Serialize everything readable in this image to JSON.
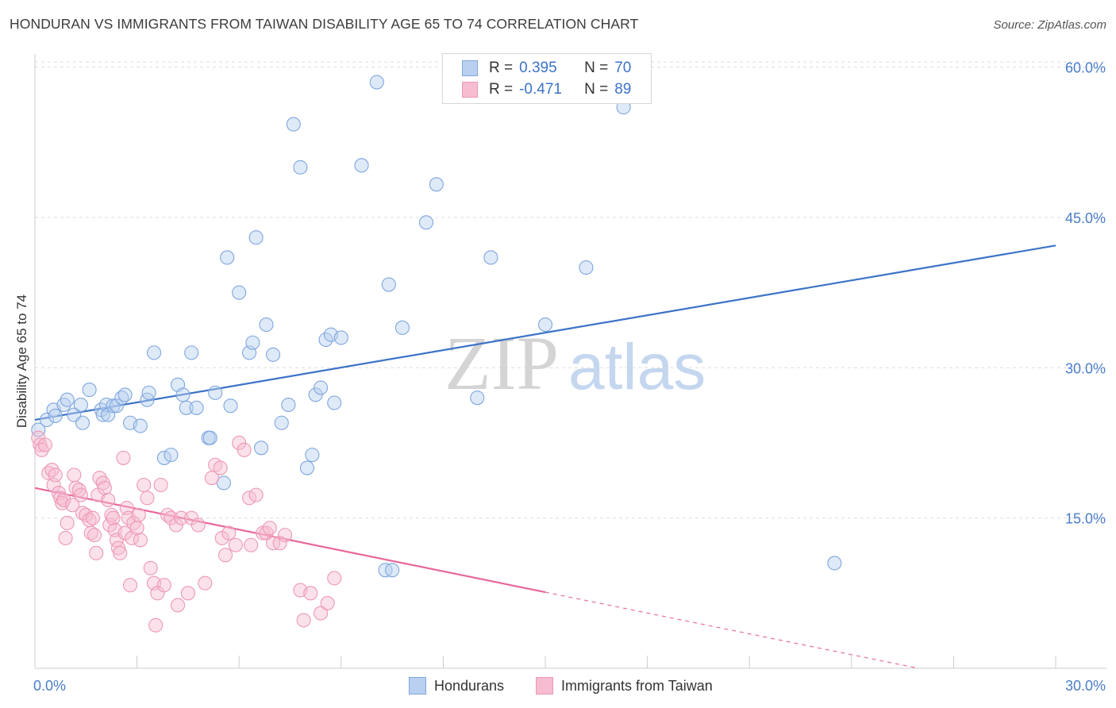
{
  "title": "HONDURAN VS IMMIGRANTS FROM TAIWAN DISABILITY AGE 65 TO 74 CORRELATION CHART",
  "source": "Source: ZipAtlas.com",
  "watermark": {
    "zip": "ZIP",
    "atlas": "atlas"
  },
  "colors": {
    "blue": "#3b73c8",
    "blue_fill": "#b9d0f0",
    "pink": "#e8679a",
    "pink_fill": "#f6bcd0",
    "grid": "#dddddd"
  },
  "legend": {
    "rows": [
      {
        "r_label": "R =",
        "r_value": "0.395",
        "n_label": "N =",
        "n_value": "70"
      },
      {
        "r_label": "R =",
        "r_value": "-0.471",
        "n_label": "N =",
        "n_value": "89"
      }
    ]
  },
  "bottom_legend": {
    "s1": "Hondurans",
    "s2": "Immigrants from Taiwan"
  },
  "chart_data": {
    "type": "scatter",
    "title": "HONDURAN VS IMMIGRANTS FROM TAIWAN DISABILITY AGE 65 TO 74 CORRELATION CHART",
    "xlabel": "",
    "ylabel": "Disability Age 65 to 74",
    "xlim": [
      0,
      30
    ],
    "ylim": [
      0,
      61
    ],
    "y_ticks": [
      15,
      30,
      45,
      60
    ],
    "y_tick_labels": [
      "15.0%",
      "30.0%",
      "45.0%",
      "60.0%"
    ],
    "x_tick_labels": [
      "0.0%",
      "30.0%"
    ],
    "grid": true,
    "legend_position": "top-center",
    "series": [
      {
        "name": "Hondurans",
        "color": "#3b73c8",
        "trend": {
          "x": [
            0.0,
            30.0
          ],
          "y": [
            24.8,
            42.2
          ],
          "style": "solid"
        },
        "points": [
          [
            0.1,
            23.8
          ],
          [
            0.35,
            24.8
          ],
          [
            0.55,
            25.8
          ],
          [
            0.6,
            25.2
          ],
          [
            0.85,
            26.3
          ],
          [
            0.95,
            26.8
          ],
          [
            1.15,
            25.3
          ],
          [
            1.35,
            26.3
          ],
          [
            1.4,
            24.5
          ],
          [
            1.6,
            27.8
          ],
          [
            1.95,
            25.8
          ],
          [
            2.0,
            25.3
          ],
          [
            2.1,
            26.3
          ],
          [
            2.15,
            25.3
          ],
          [
            2.3,
            26.2
          ],
          [
            2.4,
            26.2
          ],
          [
            2.55,
            27.0
          ],
          [
            2.65,
            27.3
          ],
          [
            2.8,
            24.5
          ],
          [
            3.1,
            24.2
          ],
          [
            3.3,
            26.8
          ],
          [
            3.35,
            27.5
          ],
          [
            3.5,
            31.5
          ],
          [
            3.8,
            21.0
          ],
          [
            4.0,
            21.3
          ],
          [
            4.2,
            28.3
          ],
          [
            4.35,
            27.3
          ],
          [
            4.45,
            26.0
          ],
          [
            4.6,
            31.5
          ],
          [
            4.75,
            26.0
          ],
          [
            5.1,
            23.0
          ],
          [
            5.15,
            23.0
          ],
          [
            5.3,
            27.5
          ],
          [
            5.55,
            18.5
          ],
          [
            5.65,
            41.0
          ],
          [
            5.75,
            26.2
          ],
          [
            6.0,
            37.5
          ],
          [
            6.3,
            31.5
          ],
          [
            6.4,
            32.5
          ],
          [
            6.5,
            43.0
          ],
          [
            6.65,
            22.0
          ],
          [
            6.8,
            34.3
          ],
          [
            7.0,
            31.3
          ],
          [
            7.25,
            24.5
          ],
          [
            7.45,
            26.3
          ],
          [
            7.6,
            54.3
          ],
          [
            7.8,
            50.0
          ],
          [
            8.0,
            20.0
          ],
          [
            8.15,
            21.3
          ],
          [
            8.25,
            27.3
          ],
          [
            8.4,
            28.0
          ],
          [
            8.55,
            32.8
          ],
          [
            8.7,
            33.3
          ],
          [
            8.8,
            26.5
          ],
          [
            9.0,
            33.0
          ],
          [
            9.6,
            50.2
          ],
          [
            10.05,
            58.5
          ],
          [
            10.3,
            9.8
          ],
          [
            10.4,
            38.3
          ],
          [
            10.5,
            9.8
          ],
          [
            10.8,
            34.0
          ],
          [
            11.5,
            44.5
          ],
          [
            11.8,
            48.3
          ],
          [
            13.0,
            27.0
          ],
          [
            13.4,
            41.0
          ],
          [
            15.0,
            34.3
          ],
          [
            16.0,
            59.3
          ],
          [
            16.2,
            40.0
          ],
          [
            17.3,
            56.0
          ],
          [
            23.5,
            10.5
          ]
        ]
      },
      {
        "name": "Immigrants from Taiwan",
        "color": "#e8679a",
        "trend": {
          "x": [
            0.0,
            15.0
          ],
          "y": [
            18.0,
            7.6
          ],
          "style": "solid",
          "dashed_extension": {
            "x": [
              15.0,
              30.0
            ],
            "y": [
              7.6,
              -2.8
            ]
          }
        },
        "points": [
          [
            0.1,
            23.0
          ],
          [
            0.15,
            22.3
          ],
          [
            0.2,
            21.8
          ],
          [
            0.3,
            22.3
          ],
          [
            0.4,
            19.5
          ],
          [
            0.5,
            19.8
          ],
          [
            0.55,
            18.3
          ],
          [
            0.6,
            19.3
          ],
          [
            0.7,
            17.5
          ],
          [
            0.75,
            17.0
          ],
          [
            0.8,
            16.5
          ],
          [
            0.85,
            16.8
          ],
          [
            0.9,
            13.0
          ],
          [
            0.95,
            14.5
          ],
          [
            1.1,
            16.3
          ],
          [
            1.15,
            19.3
          ],
          [
            1.2,
            18.0
          ],
          [
            1.3,
            17.8
          ],
          [
            1.35,
            17.3
          ],
          [
            1.4,
            15.5
          ],
          [
            1.5,
            15.3
          ],
          [
            1.6,
            14.8
          ],
          [
            1.65,
            13.5
          ],
          [
            1.7,
            15.0
          ],
          [
            1.75,
            13.3
          ],
          [
            1.8,
            11.5
          ],
          [
            1.85,
            17.3
          ],
          [
            1.9,
            19.0
          ],
          [
            2.0,
            18.5
          ],
          [
            2.05,
            18.0
          ],
          [
            2.15,
            16.8
          ],
          [
            2.2,
            14.3
          ],
          [
            2.25,
            15.3
          ],
          [
            2.3,
            15.0
          ],
          [
            2.35,
            13.8
          ],
          [
            2.4,
            12.8
          ],
          [
            2.45,
            12.0
          ],
          [
            2.5,
            11.5
          ],
          [
            2.6,
            21.0
          ],
          [
            2.65,
            13.5
          ],
          [
            2.7,
            16.0
          ],
          [
            2.75,
            15.0
          ],
          [
            2.8,
            8.3
          ],
          [
            2.85,
            13.0
          ],
          [
            2.9,
            14.5
          ],
          [
            3.0,
            14.0
          ],
          [
            3.05,
            15.3
          ],
          [
            3.1,
            12.8
          ],
          [
            3.2,
            18.3
          ],
          [
            3.3,
            17.0
          ],
          [
            3.4,
            10.0
          ],
          [
            3.5,
            8.5
          ],
          [
            3.55,
            4.3
          ],
          [
            3.6,
            7.5
          ],
          [
            3.7,
            18.3
          ],
          [
            3.8,
            8.3
          ],
          [
            3.9,
            15.3
          ],
          [
            4.0,
            15.0
          ],
          [
            4.15,
            14.3
          ],
          [
            4.2,
            6.3
          ],
          [
            4.3,
            15.0
          ],
          [
            4.5,
            7.5
          ],
          [
            4.6,
            15.0
          ],
          [
            4.8,
            14.3
          ],
          [
            5.0,
            8.5
          ],
          [
            5.2,
            19.0
          ],
          [
            5.3,
            20.3
          ],
          [
            5.45,
            20.0
          ],
          [
            5.5,
            13.0
          ],
          [
            5.6,
            11.3
          ],
          [
            5.7,
            13.5
          ],
          [
            5.9,
            12.3
          ],
          [
            6.0,
            22.5
          ],
          [
            6.15,
            21.8
          ],
          [
            6.3,
            17.0
          ],
          [
            6.35,
            12.3
          ],
          [
            6.5,
            17.3
          ],
          [
            6.7,
            13.5
          ],
          [
            6.8,
            13.5
          ],
          [
            6.9,
            14.0
          ],
          [
            7.0,
            12.5
          ],
          [
            7.2,
            12.5
          ],
          [
            7.35,
            13.3
          ],
          [
            7.8,
            7.8
          ],
          [
            7.9,
            4.8
          ],
          [
            8.1,
            7.5
          ],
          [
            8.4,
            5.5
          ],
          [
            8.6,
            6.5
          ],
          [
            8.8,
            9.0
          ]
        ]
      }
    ]
  }
}
